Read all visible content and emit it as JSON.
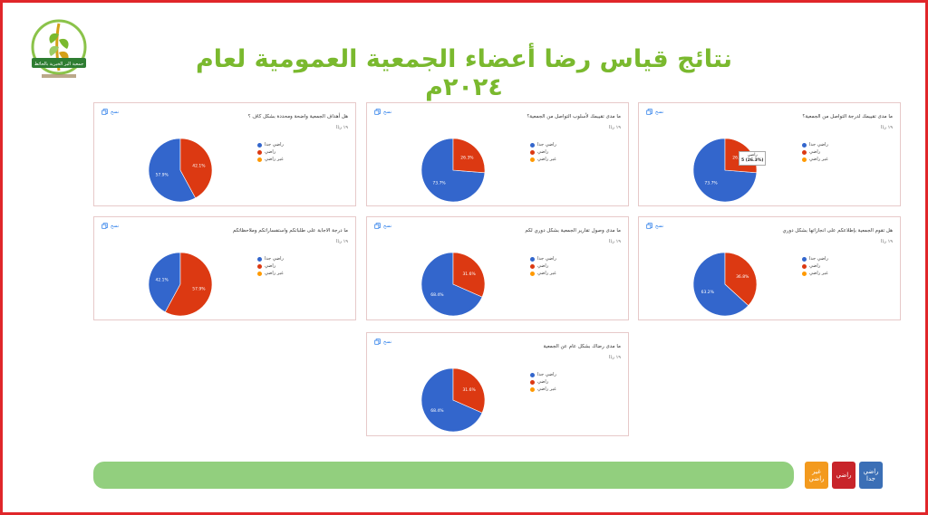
{
  "title": "نتائج قياس رضا أعضاء الجمعية العمومية لعام ٢٠٢٤م",
  "logo": {
    "text": "جمعية البر الخيرية بالحائط"
  },
  "copy_label": "نسخ",
  "legend_labels": [
    "راضي جدا",
    "راضي",
    "غير راضي"
  ],
  "colors": {
    "very_satisfied": "#3366cc",
    "satisfied": "#dc3912",
    "not_satisfied": "#ff9900",
    "frame": "#e0262a",
    "title": "#7ab92e",
    "bar": "#92cf7e"
  },
  "key": {
    "very_satisfied": "راضي جدا",
    "satisfied": "راضي",
    "not_satisfied": "غير راضي"
  },
  "tooltip": {
    "label": "راضي",
    "value": "5 (26.3%)"
  },
  "chart_data": [
    {
      "type": "pie",
      "question": "ما مدى تقييمك لدرجة التواصل من الجمعية؟",
      "count": "١٩ ردًا",
      "categories": [
        "راضي جدا",
        "راضي",
        "غير راضي"
      ],
      "values": [
        73.7,
        26.3,
        0
      ],
      "labels": [
        "73.7%",
        "26.3%",
        ""
      ]
    },
    {
      "type": "pie",
      "question": "ما مدى تقييمك لأسلوب التواصل من الجمعية؟",
      "count": "١٩ ردًا",
      "categories": [
        "راضي جدا",
        "راضي",
        "غير راضي"
      ],
      "values": [
        73.7,
        26.3,
        0
      ],
      "labels": [
        "73.7%",
        "26.3%",
        ""
      ]
    },
    {
      "type": "pie",
      "question": "هل أهداف الجمعية واضحة ومحددة بشكل كاف ؟",
      "count": "١٩ ردًا",
      "categories": [
        "راضي جدا",
        "راضي",
        "غير راضي"
      ],
      "values": [
        57.9,
        42.1,
        0
      ],
      "labels": [
        "57.9%",
        "42.1%",
        ""
      ]
    },
    {
      "type": "pie",
      "question": "هل تقوم الجمعية بإطلاعكم على انجازاتها بشكل دوري",
      "count": "١٩ ردًا",
      "categories": [
        "راضي جدا",
        "راضي",
        "غير راضي"
      ],
      "values": [
        63.2,
        36.8,
        0
      ],
      "labels": [
        "63.2%",
        "36.8%",
        ""
      ]
    },
    {
      "type": "pie",
      "question": "ما مدى وصول تقارير الجمعية بشكل دوري لكم",
      "count": "١٩ ردًا",
      "categories": [
        "راضي جدا",
        "راضي",
        "غير راضي"
      ],
      "values": [
        68.4,
        31.6,
        0
      ],
      "labels": [
        "68.4%",
        "31.6%",
        ""
      ]
    },
    {
      "type": "pie",
      "question": "ما درجة الاجابة على طلباتكم واستفساراتكم وملاحظاتكم",
      "count": "١٩ ردًا",
      "categories": [
        "راضي جدا",
        "راضي",
        "غير راضي"
      ],
      "values": [
        42.1,
        57.9,
        0
      ],
      "labels": [
        "42.1%",
        "57.9%",
        ""
      ]
    },
    {
      "type": "pie",
      "question": "ما مدى رضاك بشكل عام عن الجمعية",
      "count": "١٩ ردًا",
      "categories": [
        "راضي جدا",
        "راضي",
        "غير راضي"
      ],
      "values": [
        68.4,
        31.6,
        0
      ],
      "labels": [
        "68.4%",
        "31.6%",
        ""
      ]
    }
  ]
}
